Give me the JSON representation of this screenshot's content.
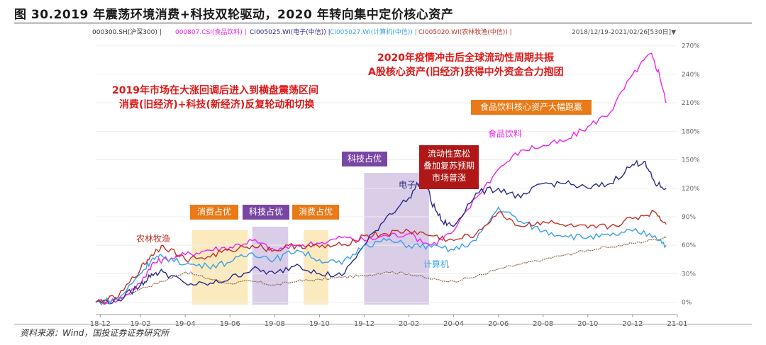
{
  "title": "图 30.2019 年震荡环境消费+科技双轮驱动，2020 年转向集中定价核心资产",
  "date_range": "2018/12/19-2021/02/26[530日]▼",
  "source": "资料来源：Wind，国投证券证券研究所",
  "annotations": {
    "a2019_line1": "2019年市场在大涨回调后进入到横盘震荡区间",
    "a2019_line2": "消费(旧经济)+科技(新经济)反复轮动和切换",
    "a2020_line1": "2020年疫情冲击后全球流动性周期共振",
    "a2020_line2": "A股核心资产(旧经济)获得中外资金合力抱团",
    "consumer1": "消费占优",
    "tech1": "科技占优",
    "consumer2": "消费占优",
    "tech2": "科技占优",
    "liquidity_line1": "流动性宽松",
    "liquidity_line2": "叠加复苏预期",
    "liquidity_line3": "市场普涨",
    "food_lead": "食品饮料核心资产大幅跑赢",
    "label_food": "食品饮料",
    "label_elec": "电子",
    "label_comp": "计算机",
    "label_agri": "农林牧渔"
  },
  "colors": {
    "hs300": "#8a6a4a",
    "food": "#ee22ee",
    "elec": "#2a2a8a",
    "comp": "#3aa0e8",
    "agri": "#c0302a",
    "orange_box": "#ea7a18",
    "purple_box": "#7a46a4",
    "red_box": "#b01818",
    "consumer_shade": "#fbe6b4",
    "tech_shade": "#d2c4e4"
  },
  "chart_data": {
    "type": "line",
    "x_tick_labels": [
      "18-12",
      "19-02",
      "19-04",
      "19-06",
      "19-08",
      "19-10",
      "19-12",
      "20-02",
      "20-04",
      "20-06",
      "20-08",
      "20-10",
      "20-12",
      "21-01"
    ],
    "y_tick_labels": [
      "0%",
      "30%",
      "60%",
      "90%",
      "120%",
      "150%",
      "180%",
      "210%",
      "240%",
      "270%"
    ],
    "ylim": [
      -10,
      275
    ],
    "legend": [
      {
        "text": "000300.SH(沪深300)",
        "color": "#333333"
      },
      {
        "text": "000807.CSI(食品饮料)",
        "color": "#ee22ee"
      },
      {
        "text": "CI005025.WI(电子(中信))",
        "color": "#2a2a8a"
      },
      {
        "text": "CI005027.WI(计算机(中信))",
        "color": "#3aa0e8"
      },
      {
        "text": "CI005020.WI(农林牧渔(中信))",
        "color": "#c0302a"
      }
    ],
    "shaded_periods": [
      {
        "label": "消费占优",
        "kind": "consumer",
        "start": 4.3,
        "end": 6.8
      },
      {
        "label": "科技占优",
        "kind": "tech",
        "start": 7.0,
        "end": 8.6
      },
      {
        "label": "消费占优",
        "kind": "consumer",
        "start": 9.3,
        "end": 10.4
      },
      {
        "label": "科技占优",
        "kind": "tech",
        "start": 12.0,
        "end": 14.9
      }
    ],
    "series": [
      {
        "name": "沪深300",
        "key": "hs300",
        "points": [
          [
            0,
            0
          ],
          [
            1,
            3
          ],
          [
            2,
            14
          ],
          [
            3,
            22
          ],
          [
            4,
            32
          ],
          [
            5,
            25
          ],
          [
            6,
            20
          ],
          [
            7,
            22
          ],
          [
            8,
            18
          ],
          [
            9,
            22
          ],
          [
            10,
            24
          ],
          [
            11,
            26
          ],
          [
            12,
            28
          ],
          [
            13,
            32
          ],
          [
            14,
            30
          ],
          [
            15,
            24
          ],
          [
            16,
            22
          ],
          [
            17,
            27
          ],
          [
            18,
            35
          ],
          [
            19,
            40
          ],
          [
            20,
            45
          ],
          [
            21,
            50
          ],
          [
            22,
            55
          ],
          [
            23,
            58
          ],
          [
            24,
            62
          ],
          [
            25,
            66
          ],
          [
            25.5,
            68
          ]
        ]
      },
      {
        "name": "食品饮料",
        "key": "food",
        "points": [
          [
            0,
            0
          ],
          [
            1,
            2
          ],
          [
            2,
            20
          ],
          [
            2.5,
            40
          ],
          [
            3,
            45
          ],
          [
            4,
            50
          ],
          [
            5,
            55
          ],
          [
            6,
            58
          ],
          [
            7,
            65
          ],
          [
            8,
            55
          ],
          [
            9,
            60
          ],
          [
            10,
            62
          ],
          [
            11,
            68
          ],
          [
            12,
            65
          ],
          [
            13,
            70
          ],
          [
            14,
            72
          ],
          [
            15,
            60
          ],
          [
            16,
            75
          ],
          [
            17,
            110
          ],
          [
            18,
            140
          ],
          [
            19,
            160
          ],
          [
            20,
            165
          ],
          [
            21,
            170
          ],
          [
            22,
            185
          ],
          [
            23,
            200
          ],
          [
            24,
            240
          ],
          [
            24.8,
            262
          ],
          [
            25.2,
            240
          ],
          [
            25.5,
            210
          ]
        ]
      },
      {
        "name": "电子",
        "key": "elec",
        "points": [
          [
            0,
            0
          ],
          [
            1,
            2
          ],
          [
            2,
            18
          ],
          [
            2.5,
            30
          ],
          [
            3,
            32
          ],
          [
            4,
            20
          ],
          [
            5,
            18
          ],
          [
            6,
            25
          ],
          [
            7,
            35
          ],
          [
            8,
            30
          ],
          [
            9,
            40
          ],
          [
            10,
            30
          ],
          [
            11,
            28
          ],
          [
            12,
            60
          ],
          [
            13,
            90
          ],
          [
            14,
            110
          ],
          [
            14.7,
            135
          ],
          [
            15,
            105
          ],
          [
            15.5,
            85
          ],
          [
            16,
            80
          ],
          [
            17,
            115
          ],
          [
            18,
            120
          ],
          [
            19,
            110
          ],
          [
            20,
            125
          ],
          [
            21,
            125
          ],
          [
            22,
            120
          ],
          [
            23,
            125
          ],
          [
            24,
            145
          ],
          [
            24.5,
            148
          ],
          [
            25,
            125
          ],
          [
            25.5,
            120
          ]
        ]
      },
      {
        "name": "计算机",
        "key": "comp",
        "points": [
          [
            0,
            0
          ],
          [
            1,
            3
          ],
          [
            2,
            30
          ],
          [
            2.5,
            45
          ],
          [
            3,
            48
          ],
          [
            4,
            40
          ],
          [
            5,
            38
          ],
          [
            6,
            42
          ],
          [
            7,
            52
          ],
          [
            8,
            45
          ],
          [
            9,
            55
          ],
          [
            10,
            45
          ],
          [
            11,
            40
          ],
          [
            12,
            60
          ],
          [
            13,
            65
          ],
          [
            14,
            60
          ],
          [
            15,
            58
          ],
          [
            16,
            55
          ],
          [
            17,
            65
          ],
          [
            18,
            100
          ],
          [
            19,
            85
          ],
          [
            20,
            75
          ],
          [
            21,
            70
          ],
          [
            22,
            68
          ],
          [
            23,
            70
          ],
          [
            24,
            75
          ],
          [
            25,
            70
          ],
          [
            25.5,
            60
          ]
        ]
      },
      {
        "name": "农林牧渔",
        "key": "agri",
        "points": [
          [
            0,
            0
          ],
          [
            1,
            5
          ],
          [
            2,
            35
          ],
          [
            2.5,
            50
          ],
          [
            3,
            60
          ],
          [
            4,
            45
          ],
          [
            5,
            48
          ],
          [
            6,
            55
          ],
          [
            7,
            60
          ],
          [
            8,
            55
          ],
          [
            9,
            60
          ],
          [
            10,
            58
          ],
          [
            11,
            60
          ],
          [
            12,
            70
          ],
          [
            13,
            72
          ],
          [
            14,
            75
          ],
          [
            15,
            70
          ],
          [
            16,
            65
          ],
          [
            17,
            72
          ],
          [
            18,
            95
          ],
          [
            19,
            80
          ],
          [
            20,
            85
          ],
          [
            21,
            80
          ],
          [
            22,
            78
          ],
          [
            23,
            80
          ],
          [
            24,
            88
          ],
          [
            25,
            95
          ],
          [
            25.5,
            82
          ]
        ]
      }
    ]
  }
}
